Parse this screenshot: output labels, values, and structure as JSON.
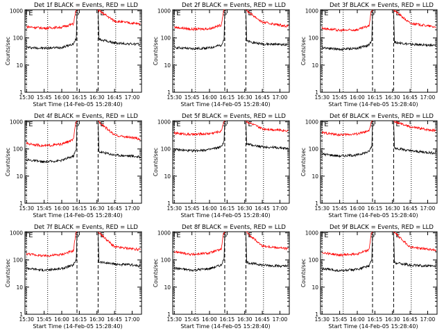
{
  "chart_data": [
    {
      "type": "line",
      "title": "Det 1f BLACK = Events, RED = LLD",
      "ylabel": "Counts/sec",
      "xlabel": "Start Time (14-Feb-05 15:28:40)",
      "x_ticks": [
        "15:30",
        "15:45",
        "16:00",
        "16:15",
        "16:30",
        "16:45",
        "17:00"
      ],
      "y_ticks": [
        "1",
        "10",
        "100",
        "1000"
      ],
      "ylim": [
        1,
        1100
      ],
      "xlim": [
        "15:28:40",
        "17:08:00"
      ],
      "markers": [
        {
          "label": "E",
          "time": "15:30",
          "style": "dotted"
        },
        {
          "label": "S",
          "time": "16:13",
          "style": "dashed"
        },
        {
          "label": "E",
          "time": "16:31",
          "style": "dashed"
        },
        {
          "label": "",
          "time": "15:48",
          "style": "dotted"
        },
        {
          "label": "",
          "time": "16:46",
          "style": "dotted"
        }
      ],
      "gap": [
        "16:13",
        "16:31"
      ],
      "series": [
        {
          "name": "Events",
          "color": "#000000",
          "x": [
            "15:30",
            "15:45",
            "16:00",
            "16:10",
            "16:12",
            "16:32",
            "16:45",
            "17:00",
            "17:07"
          ],
          "values": [
            45,
            42,
            45,
            60,
            90,
            90,
            65,
            60,
            58
          ]
        },
        {
          "name": "LLD",
          "color": "#ff0000",
          "x": [
            "15:30",
            "15:45",
            "16:00",
            "16:10",
            "16:12",
            "16:32",
            "16:45",
            "17:00",
            "17:07"
          ],
          "values": [
            260,
            230,
            250,
            330,
            1000,
            1000,
            420,
            350,
            330
          ]
        }
      ]
    },
    {
      "type": "line",
      "title": "Det 2f BLACK = Events, RED = LLD",
      "ylabel": "Counts/sec",
      "xlabel": "Start Time (14-Feb-05 15:28:40)",
      "x_ticks": [
        "15:30",
        "15:45",
        "16:00",
        "16:15",
        "16:30",
        "16:45",
        "17:00"
      ],
      "y_ticks": [
        "1",
        "10",
        "100",
        "1000"
      ],
      "ylim": [
        1,
        1100
      ],
      "xlim": [
        "15:28:40",
        "17:08:00"
      ],
      "markers": [
        {
          "label": "E",
          "time": "15:30",
          "style": "dotted"
        },
        {
          "label": "S",
          "time": "16:13",
          "style": "dashed"
        },
        {
          "label": "E",
          "time": "16:31",
          "style": "dashed"
        },
        {
          "label": "",
          "time": "15:48",
          "style": "dotted"
        },
        {
          "label": "",
          "time": "16:46",
          "style": "dotted"
        }
      ],
      "gap": [
        "16:13",
        "16:31"
      ],
      "series": [
        {
          "name": "Events",
          "color": "#000000",
          "x": [
            "15:30",
            "15:45",
            "16:00",
            "16:10",
            "16:12",
            "16:32",
            "16:45",
            "17:00",
            "17:07"
          ],
          "values": [
            45,
            40,
            43,
            55,
            85,
            75,
            60,
            58,
            55
          ]
        },
        {
          "name": "LLD",
          "color": "#ff0000",
          "x": [
            "15:30",
            "15:45",
            "16:00",
            "16:10",
            "16:12",
            "16:32",
            "16:45",
            "17:00",
            "17:07"
          ],
          "values": [
            250,
            210,
            220,
            300,
            1000,
            1000,
            380,
            300,
            270
          ]
        }
      ]
    },
    {
      "type": "line",
      "title": "Det 3f BLACK = Events, RED = LLD",
      "ylabel": "Counts/sec",
      "xlabel": "Start Time (14-Feb-05 15:28:40)",
      "x_ticks": [
        "15:30",
        "15:45",
        "16:00",
        "16:15",
        "16:30",
        "16:45",
        "17:00"
      ],
      "y_ticks": [
        "1",
        "10",
        "100",
        "1000"
      ],
      "ylim": [
        1,
        1100
      ],
      "xlim": [
        "15:28:40",
        "17:08:00"
      ],
      "markers": [
        {
          "label": "E",
          "time": "15:30",
          "style": "dotted"
        },
        {
          "label": "S",
          "time": "16:13",
          "style": "dashed"
        },
        {
          "label": "E",
          "time": "16:31",
          "style": "dashed"
        },
        {
          "label": "",
          "time": "15:48",
          "style": "dotted"
        },
        {
          "label": "",
          "time": "16:46",
          "style": "dotted"
        }
      ],
      "gap": [
        "16:13",
        "16:31"
      ],
      "series": [
        {
          "name": "Events",
          "color": "#000000",
          "x": [
            "15:30",
            "15:45",
            "16:00",
            "16:10",
            "16:12",
            "16:32",
            "16:45",
            "17:00",
            "17:07"
          ],
          "values": [
            45,
            38,
            42,
            55,
            80,
            70,
            58,
            55,
            52
          ]
        },
        {
          "name": "LLD",
          "color": "#ff0000",
          "x": [
            "15:30",
            "15:45",
            "16:00",
            "16:10",
            "16:12",
            "16:32",
            "16:45",
            "17:00",
            "17:07"
          ],
          "values": [
            230,
            190,
            200,
            280,
            1000,
            1000,
            350,
            280,
            250
          ]
        }
      ]
    },
    {
      "type": "line",
      "title": "Det 4f BLACK = Events, RED = LLD",
      "ylabel": "Counts/sec",
      "xlabel": "Start Time (14-Feb-05 15:28:40)",
      "x_ticks": [
        "15:30",
        "15:45",
        "16:00",
        "16:15",
        "16:30",
        "16:45",
        "17:00"
      ],
      "y_ticks": [
        "1",
        "10",
        "100",
        "1000"
      ],
      "ylim": [
        1,
        1100
      ],
      "xlim": [
        "15:28:40",
        "17:08:00"
      ],
      "markers": [
        {
          "label": "E",
          "time": "15:30",
          "style": "dotted"
        },
        {
          "label": "S",
          "time": "16:13",
          "style": "dashed"
        },
        {
          "label": "E",
          "time": "16:31",
          "style": "dashed"
        },
        {
          "label": "",
          "time": "15:48",
          "style": "dotted"
        },
        {
          "label": "",
          "time": "16:46",
          "style": "dotted"
        }
      ],
      "gap": [
        "16:13",
        "16:31"
      ],
      "series": [
        {
          "name": "Events",
          "color": "#000000",
          "x": [
            "15:30",
            "15:45",
            "16:00",
            "16:10",
            "16:12",
            "16:32",
            "16:45",
            "17:00",
            "17:07"
          ],
          "values": [
            40,
            33,
            38,
            55,
            90,
            80,
            60,
            55,
            50
          ]
        },
        {
          "name": "LLD",
          "color": "#ff0000",
          "x": [
            "15:30",
            "15:45",
            "16:00",
            "16:10",
            "16:12",
            "16:32",
            "16:45",
            "17:00",
            "17:07"
          ],
          "values": [
            160,
            130,
            150,
            220,
            1000,
            1000,
            320,
            260,
            230
          ]
        }
      ]
    },
    {
      "type": "line",
      "title": "Det 5f BLACK = Events, RED = LLD",
      "ylabel": "Counts/sec",
      "xlabel": "Start Time (14-Feb-05 15:28:40)",
      "x_ticks": [
        "15:30",
        "15:45",
        "16:00",
        "16:15",
        "16:30",
        "16:45",
        "17:00"
      ],
      "y_ticks": [
        "1",
        "10",
        "100",
        "1000"
      ],
      "ylim": [
        1,
        1100
      ],
      "xlim": [
        "15:28:40",
        "17:08:00"
      ],
      "markers": [
        {
          "label": "E",
          "time": "15:30",
          "style": "dotted"
        },
        {
          "label": "S",
          "time": "16:13",
          "style": "dashed"
        },
        {
          "label": "E",
          "time": "16:31",
          "style": "dashed"
        },
        {
          "label": "",
          "time": "15:48",
          "style": "dotted"
        },
        {
          "label": "",
          "time": "16:46",
          "style": "dotted"
        }
      ],
      "gap": [
        "16:13",
        "16:31"
      ],
      "series": [
        {
          "name": "Events",
          "color": "#000000",
          "x": [
            "15:30",
            "15:45",
            "16:00",
            "16:10",
            "16:12",
            "16:32",
            "16:45",
            "17:00",
            "17:07"
          ],
          "values": [
            95,
            85,
            95,
            120,
            180,
            150,
            120,
            110,
            105
          ]
        },
        {
          "name": "LLD",
          "color": "#ff0000",
          "x": [
            "15:30",
            "15:45",
            "16:00",
            "16:10",
            "16:12",
            "16:32",
            "16:45",
            "17:00",
            "17:07"
          ],
          "values": [
            380,
            340,
            370,
            450,
            1000,
            1000,
            560,
            500,
            470
          ]
        }
      ]
    },
    {
      "type": "line",
      "title": "Det 6f BLACK = Events, RED = LLD",
      "ylabel": "Counts/sec",
      "xlabel": "Start Time (14-Feb-05 15:28:40)",
      "x_ticks": [
        "15:30",
        "15:45",
        "16:00",
        "16:15",
        "16:30",
        "16:45",
        "17:00"
      ],
      "y_ticks": [
        "1",
        "10",
        "100",
        "1000"
      ],
      "ylim": [
        1,
        1100
      ],
      "xlim": [
        "15:28:40",
        "17:08:00"
      ],
      "markers": [
        {
          "label": "E",
          "time": "15:30",
          "style": "dotted"
        },
        {
          "label": "S",
          "time": "16:13",
          "style": "dashed"
        },
        {
          "label": "E",
          "time": "16:31",
          "style": "dashed"
        },
        {
          "label": "",
          "time": "15:48",
          "style": "dotted"
        },
        {
          "label": "",
          "time": "16:46",
          "style": "dotted"
        }
      ],
      "gap": [
        "16:13",
        "16:31"
      ],
      "series": [
        {
          "name": "Events",
          "color": "#000000",
          "x": [
            "15:30",
            "15:45",
            "16:00",
            "16:10",
            "16:12",
            "16:32",
            "16:45",
            "17:00",
            "17:07"
          ],
          "values": [
            65,
            55,
            60,
            80,
            120,
            110,
            85,
            75,
            70
          ]
        },
        {
          "name": "LLD",
          "color": "#ff0000",
          "x": [
            "15:30",
            "15:45",
            "16:00",
            "16:10",
            "16:12",
            "16:32",
            "16:45",
            "17:00",
            "17:07"
          ],
          "values": [
            400,
            330,
            360,
            450,
            1000,
            1000,
            650,
            520,
            480
          ]
        }
      ]
    },
    {
      "type": "line",
      "title": "Det 7f BLACK = Events, RED = LLD",
      "ylabel": "Counts/sec",
      "xlabel": "Start Time (14-Feb-05 15:28:40)",
      "x_ticks": [
        "15:30",
        "15:45",
        "16:00",
        "16:15",
        "16:30",
        "16:45",
        "17:00"
      ],
      "y_ticks": [
        "1",
        "10",
        "100",
        "1000"
      ],
      "ylim": [
        1,
        1100
      ],
      "xlim": [
        "15:28:40",
        "17:08:00"
      ],
      "markers": [
        {
          "label": "E",
          "time": "15:30",
          "style": "dotted"
        },
        {
          "label": "S",
          "time": "16:13",
          "style": "dashed"
        },
        {
          "label": "E",
          "time": "16:31",
          "style": "dashed"
        },
        {
          "label": "",
          "time": "15:48",
          "style": "dotted"
        },
        {
          "label": "",
          "time": "16:46",
          "style": "dotted"
        }
      ],
      "gap": [
        "16:13",
        "16:31"
      ],
      "series": [
        {
          "name": "Events",
          "color": "#000000",
          "x": [
            "15:30",
            "15:45",
            "16:00",
            "16:10",
            "16:12",
            "16:32",
            "16:45",
            "17:00",
            "17:07"
          ],
          "values": [
            50,
            42,
            48,
            65,
            100,
            85,
            70,
            65,
            60
          ]
        },
        {
          "name": "LLD",
          "color": "#ff0000",
          "x": [
            "15:30",
            "15:45",
            "16:00",
            "16:10",
            "16:12",
            "16:32",
            "16:45",
            "17:00",
            "17:07"
          ],
          "values": [
            170,
            140,
            160,
            220,
            1000,
            1000,
            300,
            260,
            240
          ]
        }
      ]
    },
    {
      "type": "line",
      "title": "Det 8f BLACK = Events, RED = LLD",
      "ylabel": "Counts/sec",
      "xlabel": "Start Time (14-Feb-05 15:28:40)",
      "x_ticks": [
        "15:30",
        "15:45",
        "16:00",
        "16:15",
        "16:30",
        "16:45",
        "17:00"
      ],
      "y_ticks": [
        "1",
        "10",
        "100",
        "1000"
      ],
      "ylim": [
        1,
        1100
      ],
      "xlim": [
        "15:28:40",
        "17:08:00"
      ],
      "markers": [
        {
          "label": "E",
          "time": "15:30",
          "style": "dotted"
        },
        {
          "label": "S",
          "time": "16:13",
          "style": "dashed"
        },
        {
          "label": "E",
          "time": "16:31",
          "style": "dashed"
        },
        {
          "label": "",
          "time": "15:48",
          "style": "dotted"
        },
        {
          "label": "",
          "time": "16:46",
          "style": "dotted"
        }
      ],
      "gap": [
        "16:13",
        "16:31"
      ],
      "series": [
        {
          "name": "Events",
          "color": "#000000",
          "x": [
            "15:30",
            "15:45",
            "16:00",
            "16:10",
            "16:12",
            "16:32",
            "16:45",
            "17:00",
            "17:07"
          ],
          "values": [
            50,
            42,
            48,
            65,
            100,
            80,
            65,
            60,
            58
          ]
        },
        {
          "name": "LLD",
          "color": "#ff0000",
          "x": [
            "15:30",
            "15:45",
            "16:00",
            "16:10",
            "16:12",
            "16:32",
            "16:45",
            "17:00",
            "17:07"
          ],
          "values": [
            200,
            160,
            180,
            250,
            1000,
            1000,
            330,
            280,
            260
          ]
        }
      ]
    },
    {
      "type": "line",
      "title": "Det 9f BLACK = Events, RED = LLD",
      "ylabel": "Counts/sec",
      "xlabel": "Start Time (14-Feb-05 15:28:40)",
      "x_ticks": [
        "15:30",
        "15:45",
        "16:00",
        "16:15",
        "16:30",
        "16:45",
        "17:00"
      ],
      "y_ticks": [
        "1",
        "10",
        "100",
        "1000"
      ],
      "ylim": [
        1,
        1100
      ],
      "xlim": [
        "15:28:40",
        "17:08:00"
      ],
      "markers": [
        {
          "label": "E",
          "time": "15:30",
          "style": "dotted"
        },
        {
          "label": "S",
          "time": "16:13",
          "style": "dashed"
        },
        {
          "label": "E",
          "time": "16:31",
          "style": "dashed"
        },
        {
          "label": "",
          "time": "15:48",
          "style": "dotted"
        },
        {
          "label": "",
          "time": "16:46",
          "style": "dotted"
        }
      ],
      "gap": [
        "16:13",
        "16:31"
      ],
      "series": [
        {
          "name": "Events",
          "color": "#000000",
          "x": [
            "15:30",
            "15:45",
            "16:00",
            "16:10",
            "16:12",
            "16:32",
            "16:45",
            "17:00",
            "17:07"
          ],
          "values": [
            48,
            40,
            45,
            60,
            95,
            80,
            65,
            60,
            58
          ]
        },
        {
          "name": "LLD",
          "color": "#ff0000",
          "x": [
            "15:30",
            "15:45",
            "16:00",
            "16:10",
            "16:12",
            "16:32",
            "16:45",
            "17:00",
            "17:07"
          ],
          "values": [
            190,
            150,
            170,
            230,
            1000,
            1000,
            300,
            250,
            230
          ]
        }
      ]
    }
  ]
}
